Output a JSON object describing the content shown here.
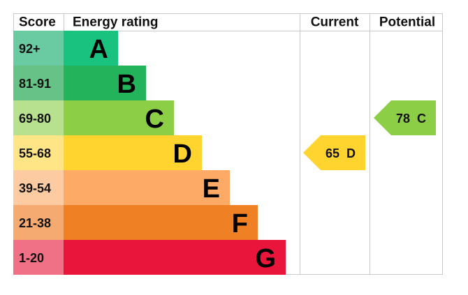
{
  "header": {
    "score": "Score",
    "rating": "Energy rating",
    "current": "Current",
    "potential": "Potential"
  },
  "rows": [
    {
      "score": "92+",
      "letter": "A",
      "color": "#19c37f",
      "score_color": "#6acaa1"
    },
    {
      "score": "81-91",
      "letter": "B",
      "color": "#23b35a",
      "score_color": "#66c286"
    },
    {
      "score": "69-80",
      "letter": "C",
      "color": "#8dce47",
      "score_color": "#b7e08f"
    },
    {
      "score": "55-68",
      "letter": "D",
      "color": "#ffd42f",
      "score_color": "#ffe586"
    },
    {
      "score": "39-54",
      "letter": "E",
      "color": "#fcaa65",
      "score_color": "#fdcba2"
    },
    {
      "score": "21-38",
      "letter": "F",
      "color": "#ef8023",
      "score_color": "#f5aa71"
    },
    {
      "score": "1-20",
      "letter": "G",
      "color": "#e9153b",
      "score_color": "#f07185"
    }
  ],
  "current": {
    "score": 65,
    "rating": "D"
  },
  "potential": {
    "score": 78,
    "rating": "C"
  }
}
